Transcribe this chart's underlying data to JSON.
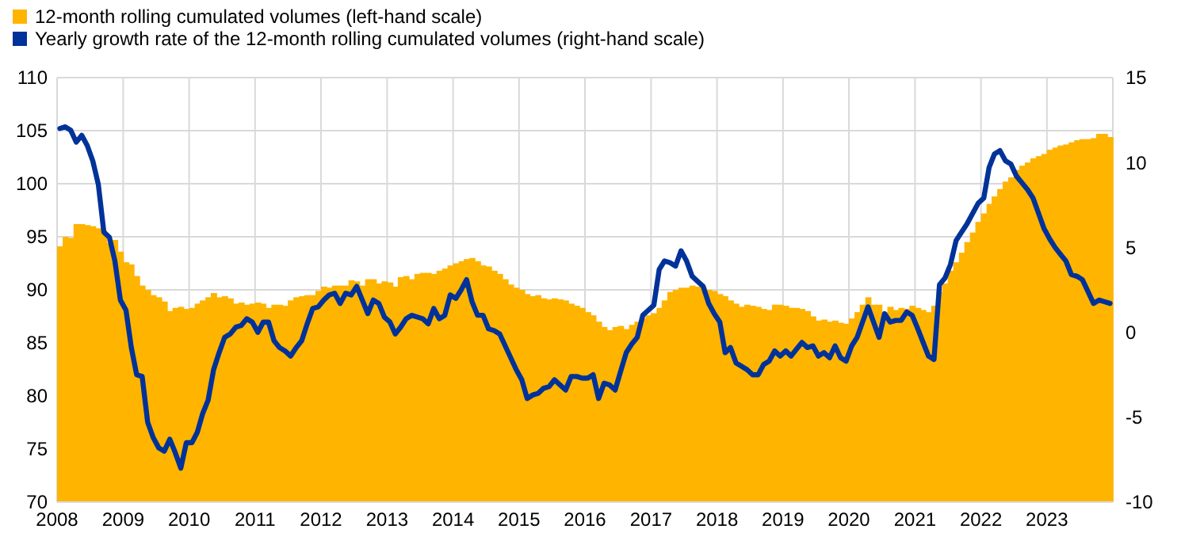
{
  "chart_data": {
    "type": "bar",
    "x": [
      "2008-01",
      "2008-02",
      "2008-03",
      "2008-04",
      "2008-05",
      "2008-06",
      "2008-07",
      "2008-08",
      "2008-09",
      "2008-10",
      "2008-11",
      "2008-12",
      "2009-01",
      "2009-02",
      "2009-03",
      "2009-04",
      "2009-05",
      "2009-06",
      "2009-07",
      "2009-08",
      "2009-09",
      "2009-10",
      "2009-11",
      "2009-12",
      "2010-01",
      "2010-02",
      "2010-03",
      "2010-04",
      "2010-05",
      "2010-06",
      "2010-07",
      "2010-08",
      "2010-09",
      "2010-10",
      "2010-11",
      "2010-12",
      "2011-01",
      "2011-02",
      "2011-03",
      "2011-04",
      "2011-05",
      "2011-06",
      "2011-07",
      "2011-08",
      "2011-09",
      "2011-10",
      "2011-11",
      "2011-12",
      "2012-01",
      "2012-02",
      "2012-03",
      "2012-04",
      "2012-05",
      "2012-06",
      "2012-07",
      "2012-08",
      "2012-09",
      "2012-10",
      "2012-11",
      "2012-12",
      "2013-01",
      "2013-02",
      "2013-03",
      "2013-04",
      "2013-05",
      "2013-06",
      "2013-07",
      "2013-08",
      "2013-09",
      "2013-10",
      "2013-11",
      "2013-12",
      "2014-01",
      "2014-02",
      "2014-03",
      "2014-04",
      "2014-05",
      "2014-06",
      "2014-07",
      "2014-08",
      "2014-09",
      "2014-10",
      "2014-11",
      "2014-12",
      "2015-01",
      "2015-02",
      "2015-03",
      "2015-04",
      "2015-05",
      "2015-06",
      "2015-07",
      "2015-08",
      "2015-09",
      "2015-10",
      "2015-11",
      "2015-12",
      "2016-01",
      "2016-02",
      "2016-03",
      "2016-04",
      "2016-05",
      "2016-06",
      "2016-07",
      "2016-08",
      "2016-09",
      "2016-10",
      "2016-11",
      "2016-12",
      "2017-01",
      "2017-02",
      "2017-03",
      "2017-04",
      "2017-05",
      "2017-06",
      "2017-07",
      "2017-08",
      "2017-09",
      "2017-10",
      "2017-11",
      "2017-12",
      "2018-01",
      "2018-02",
      "2018-03",
      "2018-04",
      "2018-05",
      "2018-06",
      "2018-07",
      "2018-08",
      "2018-09",
      "2018-10",
      "2018-11",
      "2018-12",
      "2019-01",
      "2019-02",
      "2019-03",
      "2019-04",
      "2019-05",
      "2019-06",
      "2019-07",
      "2019-08",
      "2019-09",
      "2019-10",
      "2019-11",
      "2019-12",
      "2020-01",
      "2020-02",
      "2020-03",
      "2020-04",
      "2020-05",
      "2020-06",
      "2020-07",
      "2020-08",
      "2020-09",
      "2020-10",
      "2020-11",
      "2020-12",
      "2021-01",
      "2021-02",
      "2021-03",
      "2021-04",
      "2021-05",
      "2021-06",
      "2021-07",
      "2021-08",
      "2021-09",
      "2021-10",
      "2021-11",
      "2021-12",
      "2022-01",
      "2022-02",
      "2022-03",
      "2022-04",
      "2022-05",
      "2022-06",
      "2022-07",
      "2022-08",
      "2022-09",
      "2022-10",
      "2022-11",
      "2022-12",
      "2023-01",
      "2023-02",
      "2023-03",
      "2023-04",
      "2023-05",
      "2023-06",
      "2023-07",
      "2023-08",
      "2023-09",
      "2023-10",
      "2023-11",
      "2023-12"
    ],
    "series": [
      {
        "name": "12-month rolling cumulated volumes (left-hand scale)",
        "color": "#ffb400",
        "values": [
          94.1,
          95,
          94.9,
          96.2,
          96.2,
          96.1,
          96,
          95.8,
          95.6,
          94.4,
          94.7,
          93.6,
          92.6,
          92.4,
          91.3,
          90.4,
          90,
          89.5,
          89.3,
          88.9,
          88.0,
          88.3,
          88.4,
          88.2,
          88.3,
          88.7,
          89.0,
          89.3,
          89.7,
          89.3,
          89.4,
          89.2,
          88.7,
          88.8,
          88.6,
          88.7,
          88.8,
          88.7,
          88.3,
          88.6,
          88.6,
          88.5,
          89.0,
          89.3,
          89.4,
          89.5,
          89.5,
          89.9,
          90.3,
          90.2,
          90.4,
          90.4,
          90.4,
          90.9,
          90.8,
          90.4,
          91.0,
          91.0,
          90.6,
          90.8,
          90.7,
          90.3,
          91.2,
          91.3,
          91.0,
          91.5,
          91.6,
          91.6,
          91.5,
          91.8,
          92.0,
          92.3,
          92.5,
          92.7,
          92.9,
          93.0,
          92.7,
          92.3,
          92.2,
          91.8,
          91.5,
          91.0,
          90.5,
          90.2,
          90.0,
          89.6,
          89.4,
          89.5,
          89.2,
          89.1,
          89.2,
          89.1,
          89.0,
          88.7,
          88.5,
          88.3,
          87.9,
          87.6,
          87.0,
          86.5,
          86.2,
          86.5,
          86.6,
          86.3,
          86.7,
          87.0,
          87.3,
          87.6,
          87.8,
          88.3,
          89.0,
          89.8,
          90.0,
          90.2,
          90.2,
          90.4,
          90.3,
          90.2,
          90.0,
          89.9,
          89.6,
          89.4,
          89.0,
          88.7,
          88.4,
          88.6,
          88.5,
          88.4,
          88.2,
          88.1,
          88.6,
          88.6,
          88.5,
          88.3,
          88.3,
          88.2,
          88.0,
          87.5,
          87.1,
          87.2,
          87.0,
          87.1,
          86.9,
          86.8,
          87.3,
          87.9,
          88.6,
          89.3,
          88.6,
          88.6,
          87.9,
          88.4,
          88.1,
          88.3,
          88.2,
          88.5,
          88.3,
          88.1,
          87.9,
          88.5,
          89.8,
          90.6,
          91.8,
          92.6,
          93.5,
          94.5,
          95.4,
          96.4,
          97.2,
          98.1,
          98.8,
          99.5,
          100.2,
          100.6,
          101.3,
          101.7,
          102.0,
          102.4,
          102.6,
          102.8,
          103.2,
          103.4,
          103.6,
          103.7,
          103.9,
          104.1,
          104.2,
          104.2,
          104.3,
          104.7,
          104.7,
          104.4
        ]
      },
      {
        "name": "Yearly growth rate of the 12-month rolling cumulated volumes (right-hand scale)",
        "type": "line",
        "axis": "y2",
        "color": "#003299",
        "values": [
          12.0,
          12.1,
          11.9,
          11.2,
          11.6,
          11.0,
          10.1,
          8.7,
          5.9,
          5.6,
          4.2,
          1.9,
          1.3,
          -0.9,
          -2.5,
          -2.6,
          -5.3,
          -6.2,
          -6.8,
          -7.0,
          -6.3,
          -7.1,
          -8.0,
          -6.5,
          -6.5,
          -5.9,
          -4.8,
          -4.0,
          -2.2,
          -1.2,
          -0.3,
          -0.1,
          0.3,
          0.4,
          0.8,
          0.6,
          0.0,
          0.6,
          0.6,
          -0.5,
          -0.9,
          -1.1,
          -1.4,
          -0.9,
          -0.5,
          0.5,
          1.4,
          1.5,
          1.9,
          2.2,
          2.3,
          1.7,
          2.3,
          2.2,
          2.7,
          1.9,
          1.1,
          1.9,
          1.7,
          0.9,
          0.6,
          -0.1,
          0.3,
          0.8,
          1.0,
          0.9,
          0.8,
          0.5,
          1.4,
          0.8,
          1.0,
          2.2,
          2.0,
          2.5,
          3.1,
          1.8,
          1.0,
          1.0,
          0.2,
          0.1,
          -0.1,
          -0.8,
          -1.5,
          -2.2,
          -2.8,
          -3.9,
          -3.7,
          -3.6,
          -3.3,
          -3.2,
          -2.8,
          -3.1,
          -3.4,
          -2.6,
          -2.6,
          -2.7,
          -2.7,
          -2.5,
          -3.9,
          -3.0,
          -3.1,
          -3.4,
          -2.3,
          -1.2,
          -0.7,
          -0.3,
          1.0,
          1.3,
          1.6,
          3.7,
          4.2,
          4.1,
          3.9,
          4.8,
          4.2,
          3.3,
          3.0,
          2.7,
          1.7,
          1.1,
          0.6,
          -1.2,
          -0.9,
          -1.8,
          -2.0,
          -2.2,
          -2.5,
          -2.5,
          -1.9,
          -1.7,
          -1.1,
          -1.4,
          -1.1,
          -1.4,
          -1.0,
          -0.6,
          -0.9,
          -0.8,
          -1.4,
          -1.2,
          -1.5,
          -0.8,
          -1.5,
          -1.7,
          -0.8,
          -0.3,
          0.6,
          1.5,
          0.6,
          -0.3,
          1.1,
          0.6,
          0.7,
          0.7,
          1.2,
          1.0,
          0.2,
          -0.6,
          -1.4,
          -1.6,
          2.8,
          3.2,
          4.0,
          5.4,
          5.9,
          6.4,
          7.0,
          7.6,
          7.9,
          9.7,
          10.5,
          10.7,
          10.1,
          9.9,
          9.2,
          8.8,
          8.4,
          7.9,
          7.0,
          6.1,
          5.5,
          5.0,
          4.6,
          4.2,
          3.4,
          3.3,
          3.1,
          2.4,
          1.7,
          1.9,
          1.8,
          1.7
        ]
      }
    ],
    "xlim": [
      "2008-01",
      "2024-01"
    ],
    "xticks": [
      "2008",
      "2009",
      "2010",
      "2011",
      "2012",
      "2013",
      "2014",
      "2015",
      "2016",
      "2017",
      "2018",
      "2019",
      "2020",
      "2021",
      "2022",
      "2023"
    ],
    "ylim": [
      70,
      110
    ],
    "yticks": [
      70,
      75,
      80,
      85,
      90,
      95,
      100,
      105,
      110
    ],
    "y2lim": [
      -10,
      15
    ],
    "y2ticks": [
      -10,
      -5,
      0,
      5,
      10,
      15
    ],
    "grid": true,
    "legend": "top left"
  }
}
